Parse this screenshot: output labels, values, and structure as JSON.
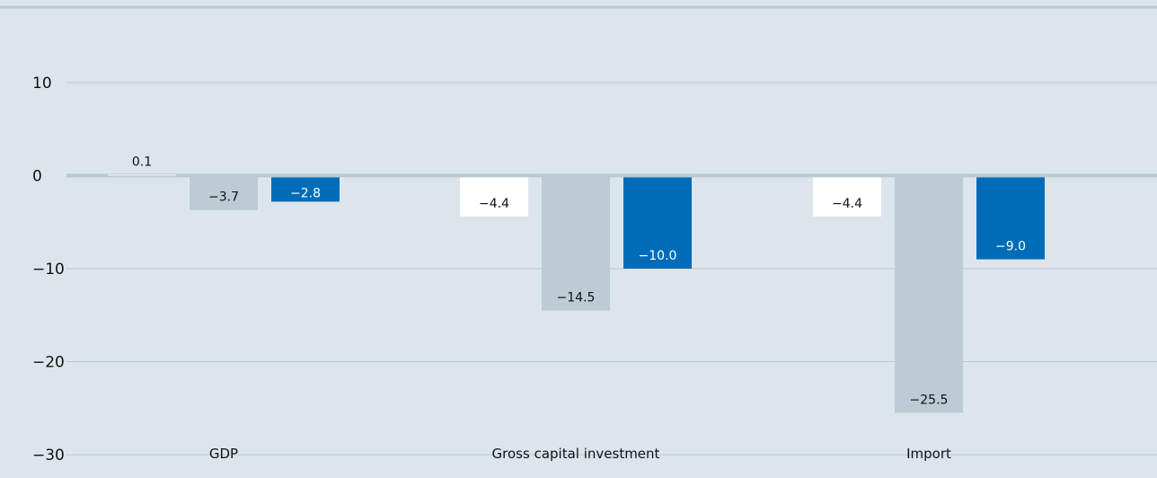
{
  "chart_data": {
    "type": "bar",
    "categories": [
      "GDP",
      "Gross capital investment",
      "Import"
    ],
    "series": [
      {
        "values": [
          0.1,
          -4.4,
          -4.4
        ],
        "color": "#ffffff",
        "label_color": "#111111"
      },
      {
        "values": [
          -3.7,
          -14.5,
          -25.5
        ],
        "color": "#bccbd4",
        "label_color": "#111111"
      },
      {
        "values": [
          -2.8,
          -10.0,
          -9.0
        ],
        "color": "#006cb7",
        "label_color": "#ffffff"
      }
    ],
    "value_labels": [
      [
        "0.1",
        "−4.4",
        "−4.4"
      ],
      [
        "−3.7",
        "−14.5",
        "−25.5"
      ],
      [
        "−2.8",
        "−10.0",
        "−9.0"
      ]
    ],
    "ylim": [
      -32.5,
      18
    ],
    "yticks": [
      10,
      0,
      -10,
      -20,
      -30
    ],
    "ytick_labels": [
      "10",
      "0",
      "−10",
      "−20",
      "−30"
    ],
    "title": "",
    "xlabel": "",
    "ylabel": "",
    "grid": true,
    "legend": "none",
    "background": "#dde5ec"
  }
}
